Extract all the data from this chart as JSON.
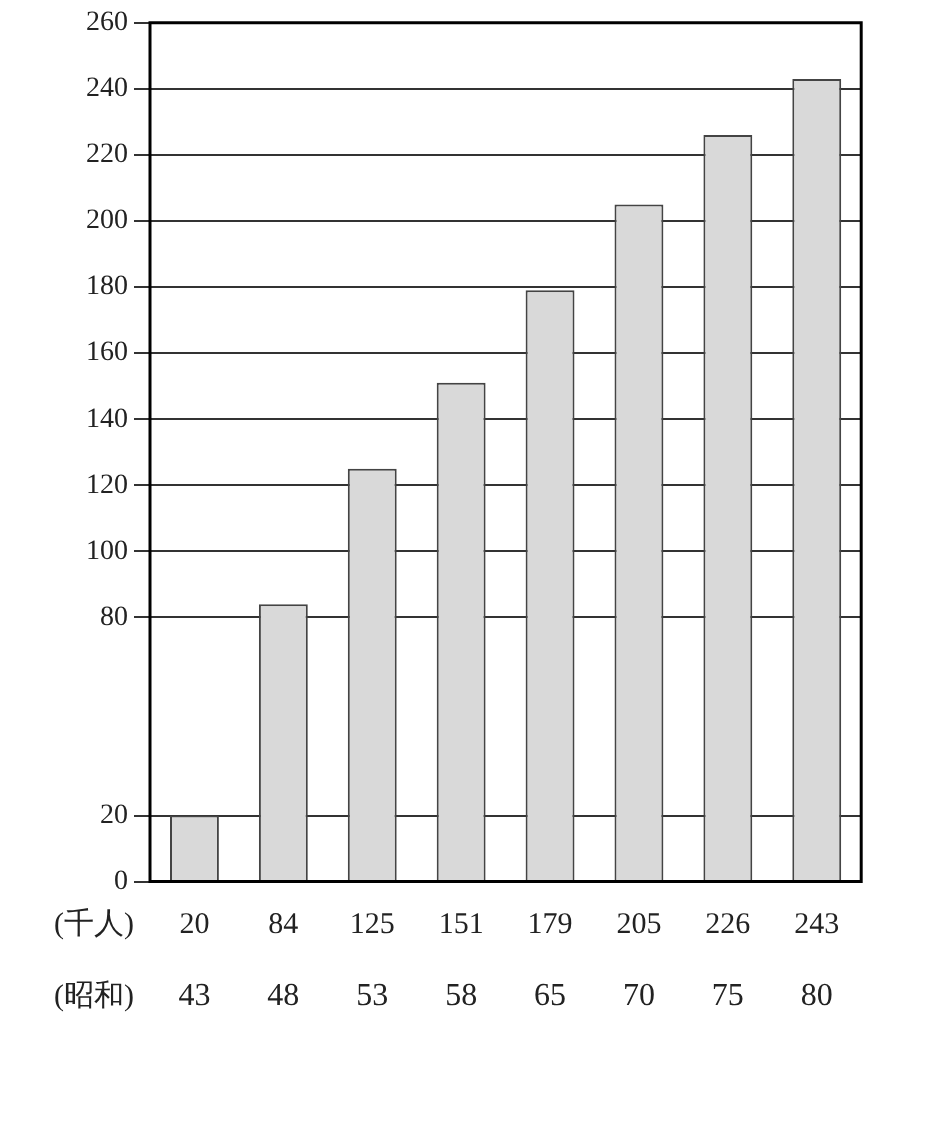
{
  "chart_data": {
    "type": "bar",
    "xlabel": "(昭和)",
    "ylabel": "(千人)",
    "categories": [
      "43",
      "48",
      "53",
      "58",
      "65",
      "70",
      "75",
      "80"
    ],
    "values": [
      20,
      84,
      125,
      151,
      179,
      205,
      226,
      243
    ],
    "color": "#d9d9d9",
    "ylim": [
      0,
      260
    ],
    "yticks": [
      0,
      20,
      80,
      100,
      120,
      140,
      160,
      180,
      200,
      220,
      240,
      260
    ],
    "grid": "y",
    "data_labels": true,
    "legend": false
  }
}
